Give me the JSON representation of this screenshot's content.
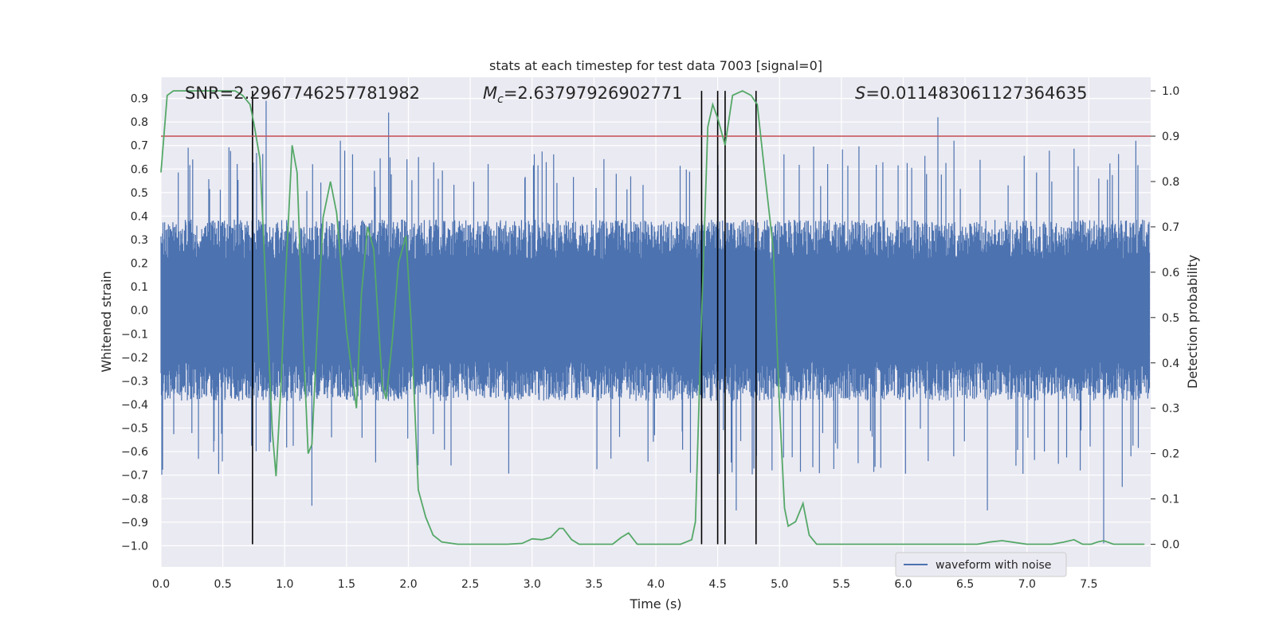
{
  "chart_data": {
    "type": "line",
    "title": "stats at each timestep for test data 7003 [signal=0]",
    "xlabel": "Time (s)",
    "ylabel_left": "Whitened strain",
    "ylabel_right": "Detection probability",
    "xlim": [
      0.0,
      8.0
    ],
    "ylim_left": [
      -1.09,
      0.99
    ],
    "ylim_right": [
      -0.05,
      1.03
    ],
    "x_ticks": [
      "0.0",
      "0.5",
      "1.0",
      "1.5",
      "2.0",
      "2.5",
      "3.0",
      "3.5",
      "4.0",
      "4.5",
      "5.0",
      "5.5",
      "6.0",
      "6.5",
      "7.0",
      "7.5"
    ],
    "y_ticks_left": [
      "0.9",
      "0.8",
      "0.7",
      "0.6",
      "0.5",
      "0.4",
      "0.3",
      "0.2",
      "0.1",
      "0.0",
      "−0.1",
      "−0.2",
      "−0.3",
      "−0.4",
      "−0.5",
      "−0.6",
      "−0.7",
      "−0.8",
      "−0.9",
      "−1.0"
    ],
    "y_ticks_right": [
      "1.0",
      "0.9",
      "0.8",
      "0.7",
      "0.6",
      "0.5",
      "0.4",
      "0.3",
      "0.2",
      "0.1",
      "0.0"
    ],
    "annotations": {
      "snr": "SNR=2.2967746257781982",
      "mc_symbol": "M",
      "mc_sub": "c",
      "mc_value": "=2.63797926902771",
      "s_symbol": "S",
      "s_value": "=0.011483061127364635"
    },
    "threshold": 0.9,
    "vertical_markers": [
      0.74,
      4.37,
      4.5,
      4.56,
      4.81
    ],
    "series": [
      {
        "name": "waveform with noise",
        "color": "#4c72b0",
        "axis": "left",
        "duration": 7.99,
        "typical_envelope": 0.35,
        "spikes": [
          {
            "t": 0.85,
            "v": 0.89
          },
          {
            "t": 1.22,
            "v": -0.83
          },
          {
            "t": 1.45,
            "v": 0.72
          },
          {
            "t": 1.84,
            "v": 0.84
          },
          {
            "t": 3.68,
            "v": 0.58
          },
          {
            "t": 4.28,
            "v": -0.69
          },
          {
            "t": 4.65,
            "v": -0.85
          },
          {
            "t": 6.28,
            "v": 0.82
          },
          {
            "t": 6.41,
            "v": 0.72
          },
          {
            "t": 6.68,
            "v": -0.85
          },
          {
            "t": 7.62,
            "v": -0.99
          },
          {
            "t": 7.77,
            "v": -0.75
          },
          {
            "t": 7.88,
            "v": 0.72
          }
        ]
      },
      {
        "name": "detection probability",
        "color": "#55a868",
        "axis": "right",
        "x": [
          0.0,
          0.05,
          0.1,
          0.2,
          0.3,
          0.4,
          0.5,
          0.6,
          0.66,
          0.72,
          0.75,
          0.8,
          0.85,
          0.9,
          0.93,
          0.97,
          1.0,
          1.06,
          1.1,
          1.15,
          1.19,
          1.22,
          1.26,
          1.31,
          1.37,
          1.42,
          1.5,
          1.58,
          1.62,
          1.67,
          1.72,
          1.79,
          1.82,
          1.87,
          1.92,
          1.98,
          2.02,
          2.08,
          2.14,
          2.2,
          2.27,
          2.4,
          2.6,
          2.8,
          2.92,
          3.0,
          3.08,
          3.15,
          3.22,
          3.25,
          3.32,
          3.38,
          3.45,
          3.55,
          3.65,
          3.72,
          3.78,
          3.85,
          3.9,
          4.0,
          4.1,
          4.2,
          4.29,
          4.32,
          4.37,
          4.42,
          4.46,
          4.5,
          4.56,
          4.62,
          4.7,
          4.77,
          4.82,
          4.88,
          4.95,
          5.0,
          5.04,
          5.07,
          5.13,
          5.19,
          5.24,
          5.3,
          5.4,
          5.6,
          5.8,
          6.0,
          6.3,
          6.6,
          6.7,
          6.8,
          7.0,
          7.2,
          7.3,
          7.38,
          7.45,
          7.52,
          7.57,
          7.62,
          7.7,
          7.8,
          7.95
        ],
        "values": [
          0.82,
          0.99,
          1.0,
          1.0,
          1.0,
          1.0,
          1.0,
          1.0,
          0.99,
          0.97,
          0.93,
          0.85,
          0.55,
          0.25,
          0.15,
          0.35,
          0.55,
          0.88,
          0.82,
          0.45,
          0.2,
          0.22,
          0.45,
          0.72,
          0.8,
          0.73,
          0.47,
          0.3,
          0.55,
          0.7,
          0.65,
          0.35,
          0.32,
          0.45,
          0.62,
          0.68,
          0.5,
          0.12,
          0.06,
          0.02,
          0.005,
          0.0,
          0.0,
          0.0,
          0.002,
          0.012,
          0.01,
          0.015,
          0.035,
          0.035,
          0.01,
          0.0,
          0.0,
          0.0,
          0.0,
          0.015,
          0.025,
          0.0,
          0.0,
          0.0,
          0.0,
          0.0,
          0.01,
          0.05,
          0.5,
          0.92,
          0.97,
          0.94,
          0.88,
          0.99,
          1.0,
          0.99,
          0.97,
          0.82,
          0.65,
          0.3,
          0.08,
          0.04,
          0.05,
          0.09,
          0.02,
          0.0,
          0.0,
          0.0,
          0.0,
          0.0,
          0.0,
          0.0,
          0.005,
          0.008,
          0.0,
          0.0,
          0.005,
          0.01,
          0.0,
          0.0,
          0.005,
          0.008,
          0.0,
          0.0,
          0.0
        ]
      }
    ]
  }
}
